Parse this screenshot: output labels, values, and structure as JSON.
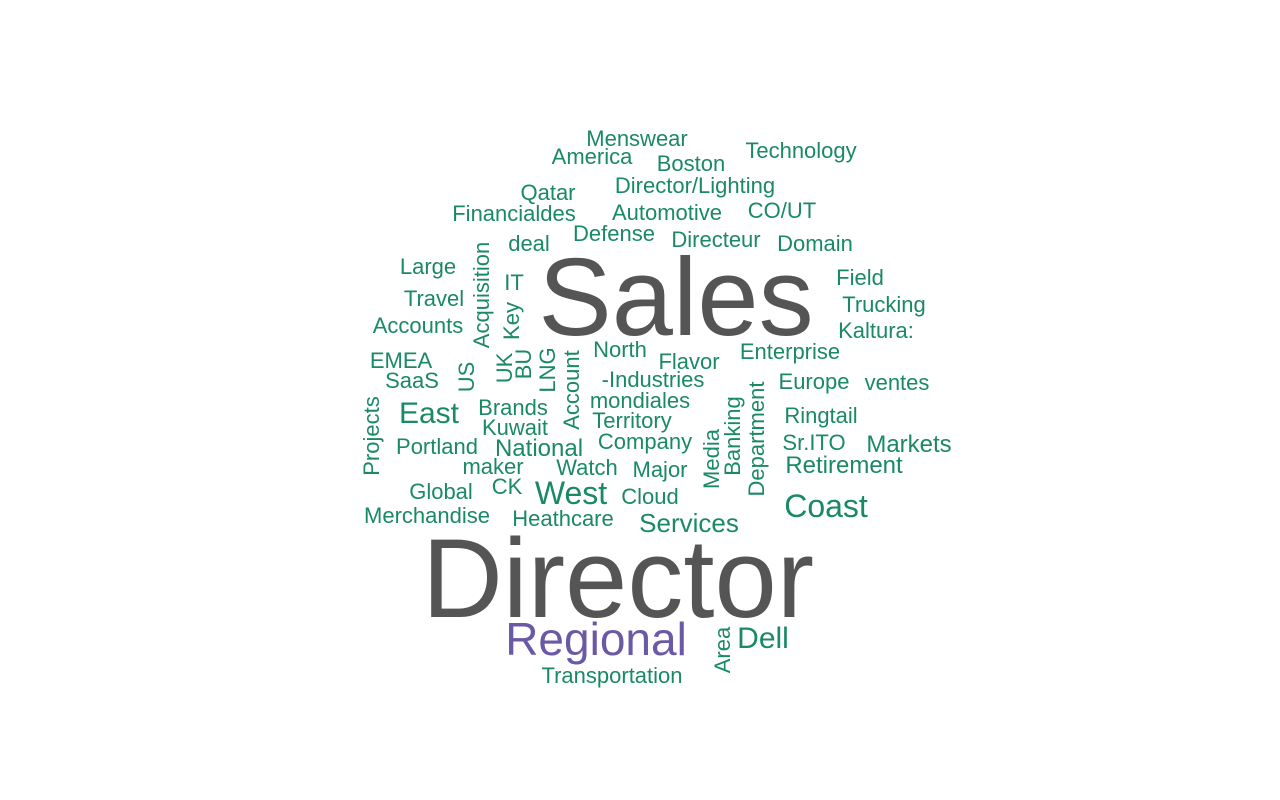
{
  "colors": {
    "background": "#ffffff",
    "primary_word": "#555555",
    "secondary_word": "#6a5aa6",
    "other_words": "#1a8a63"
  },
  "words": [
    "Director",
    "Sales",
    "Regional",
    "Coast",
    "West",
    "East",
    "Services",
    "Dell",
    "National",
    "Retirement",
    "Markets",
    "Menswear",
    "America",
    "Boston",
    "Technology",
    "Qatar",
    "Director/Lighting",
    "Financialdes",
    "Automotive",
    "CO/UT",
    "deal",
    "Defense",
    "Directeur",
    "Domain",
    "Large",
    "Field",
    "Trucking",
    "Travel",
    "Kaltura:",
    "Accounts",
    "IT",
    "Key",
    "Acquisition",
    "North",
    "Flavor",
    "Enterprise",
    "EMEA",
    "UK",
    "BU",
    "LNG",
    "Account",
    "US",
    "SaaS",
    "-Industries",
    "Europe",
    "ventes",
    "mondiales",
    "Brands",
    "Ringtail",
    "Projects",
    "Territory",
    "Kuwait",
    "Sr.ITO",
    "Portland",
    "Company",
    "Media",
    "Banking",
    "Department",
    "maker",
    "Watch",
    "Major",
    "Global",
    "CK",
    "Cloud",
    "Merchandise",
    "Heathcare",
    "Area",
    "Transportation"
  ]
}
